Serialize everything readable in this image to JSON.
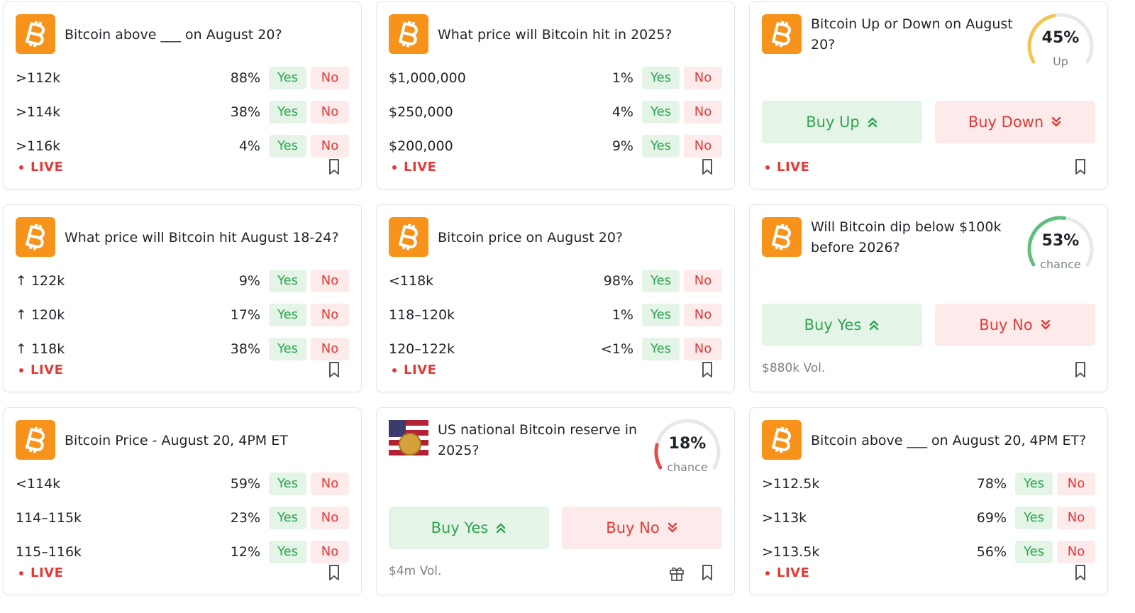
{
  "cards": [
    {
      "title": "Bitcoin above ___ on August 20?",
      "status": "LIVE",
      "outcomes": [
        {
          "label": ">112k",
          "pct": "88%",
          "yes": "Yes",
          "no": "No"
        },
        {
          "label": ">114k",
          "pct": "38%",
          "yes": "Yes",
          "no": "No"
        },
        {
          "label": ">116k",
          "pct": "4%",
          "yes": "Yes",
          "no": "No"
        }
      ]
    },
    {
      "title": "What price will Bitcoin hit in 2025?",
      "status": "LIVE",
      "outcomes": [
        {
          "label": "$1,000,000",
          "pct": "1%",
          "yes": "Yes",
          "no": "No"
        },
        {
          "label": "$250,000",
          "pct": "4%",
          "yes": "Yes",
          "no": "No"
        },
        {
          "label": "$200,000",
          "pct": "9%",
          "yes": "Yes",
          "no": "No"
        }
      ]
    },
    {
      "title": "Bitcoin Up or Down on August 20?",
      "status": "LIVE",
      "gauge": {
        "value": 45,
        "label": "45%",
        "color": "#f5c451"
      },
      "gauge_caption": "Up",
      "buttons": [
        "Buy Up",
        "Buy Down"
      ]
    },
    {
      "title": "What price will Bitcoin hit August 18-24?",
      "status": "LIVE",
      "outcomes": [
        {
          "label": "↑ 122k",
          "pct": "9%",
          "yes": "Yes",
          "no": "No"
        },
        {
          "label": "↑ 120k",
          "pct": "17%",
          "yes": "Yes",
          "no": "No"
        },
        {
          "label": "↑ 118k",
          "pct": "38%",
          "yes": "Yes",
          "no": "No"
        }
      ]
    },
    {
      "title": "Bitcoin price on August 20?",
      "status": "LIVE",
      "outcomes": [
        {
          "label": "<118k",
          "pct": "98%",
          "yes": "Yes",
          "no": "No"
        },
        {
          "label": "118–120k",
          "pct": "1%",
          "yes": "Yes",
          "no": "No"
        },
        {
          "label": "120–122k",
          "pct": "<1%",
          "yes": "Yes",
          "no": "No"
        }
      ]
    },
    {
      "title": "Will Bitcoin dip below $100k before 2026?",
      "volume": "$880k Vol.",
      "gauge": {
        "value": 53,
        "label": "53%",
        "color": "#5fbf7e"
      },
      "gauge_caption": "chance",
      "buttons": [
        "Buy Yes",
        "Buy No"
      ]
    },
    {
      "title": "Bitcoin Price - August 20, 4PM ET",
      "status": "LIVE",
      "outcomes": [
        {
          "label": "<114k",
          "pct": "59%",
          "yes": "Yes",
          "no": "No"
        },
        {
          "label": "114–115k",
          "pct": "23%",
          "yes": "Yes",
          "no": "No"
        },
        {
          "label": "115–116k",
          "pct": "12%",
          "yes": "Yes",
          "no": "No"
        }
      ]
    },
    {
      "title": "US national Bitcoin reserve in 2025?",
      "flag": true,
      "volume": "$4m Vol.",
      "gauge": {
        "value": 18,
        "label": "18%",
        "color": "#e64a4a"
      },
      "gauge_caption": "chance",
      "buttons": [
        "Buy Yes",
        "Buy No"
      ]
    },
    {
      "title": "Bitcoin above ___ on August 20, 4PM ET?",
      "status": "LIVE",
      "outcomes": [
        {
          "label": ">112.5k",
          "pct": "78%",
          "yes": "Yes",
          "no": "No"
        },
        {
          "label": ">113k",
          "pct": "69%",
          "yes": "Yes",
          "no": "No"
        },
        {
          "label": ">113.5k",
          "pct": "56%",
          "yes": "Yes",
          "no": "No"
        }
      ]
    }
  ]
}
